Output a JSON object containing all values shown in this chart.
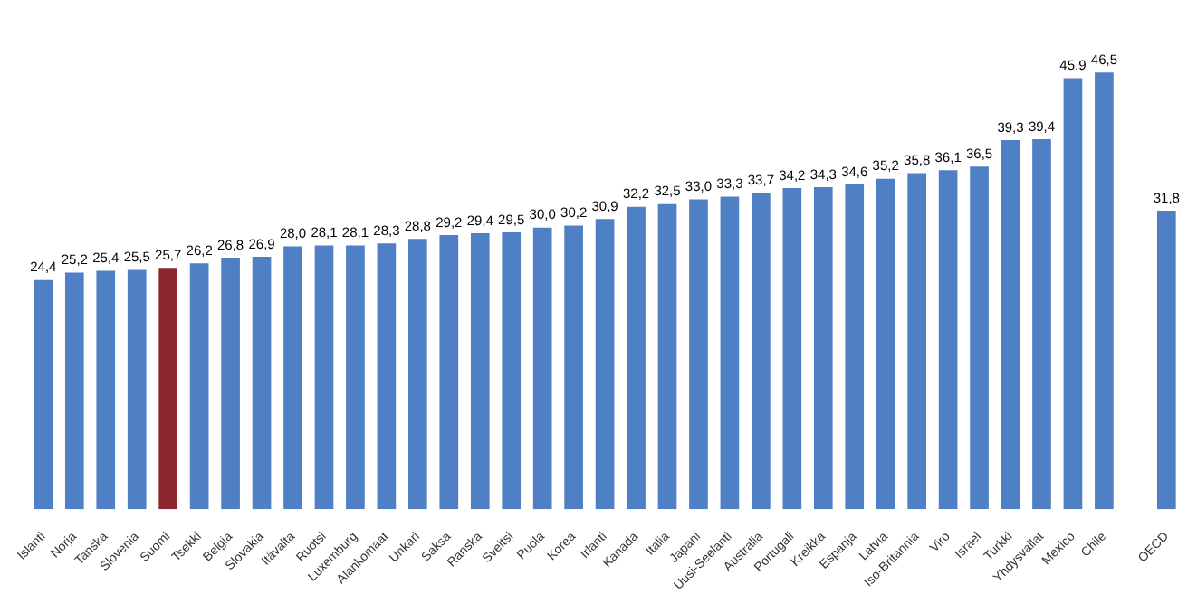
{
  "chart_data": {
    "type": "bar",
    "categories": [
      "Islanti",
      "Norja",
      "Tanska",
      "Slovenia",
      "Suomi",
      "Tsekki",
      "Belgia",
      "Slovakia",
      "Itävalta",
      "Ruotsi",
      "Luxemburg",
      "Alankomaat",
      "Unkari",
      "Saksa",
      "Ranska",
      "Sveitsi",
      "Puola",
      "Korea",
      "Irlanti",
      "Kanada",
      "Italia",
      "Japani",
      "Uusi-Seelanti",
      "Australia",
      "Portugali",
      "Kreikka",
      "Espanja",
      "Latvia",
      "Iso-Britannia",
      "Viro",
      "Israel",
      "Turkki",
      "Yhdysvallat",
      "Mexico",
      "Chile",
      null,
      "OECD"
    ],
    "values": [
      24.4,
      25.2,
      25.4,
      25.5,
      25.7,
      26.2,
      26.8,
      26.9,
      28.0,
      28.1,
      28.1,
      28.3,
      28.8,
      29.2,
      29.4,
      29.5,
      30.0,
      30.2,
      30.9,
      32.2,
      32.5,
      33.0,
      33.3,
      33.7,
      34.2,
      34.3,
      34.6,
      35.2,
      35.8,
      36.1,
      36.5,
      39.3,
      39.4,
      45.9,
      46.5,
      null,
      31.8
    ],
    "value_labels": [
      "24,4",
      "25,2",
      "25,4",
      "25,5",
      "25,7",
      "26,2",
      "26,8",
      "26,9",
      "28,0",
      "28,1",
      "28,1",
      "28,3",
      "28,8",
      "29,2",
      "29,4",
      "29,5",
      "30,0",
      "30,2",
      "30,9",
      "32,2",
      "32,5",
      "33,0",
      "33,3",
      "33,7",
      "34,2",
      "34,3",
      "34,6",
      "35,2",
      "35,8",
      "36,1",
      "36,5",
      "39,3",
      "39,4",
      "45,9",
      "46,5",
      null,
      "31,8"
    ],
    "colors": [
      "#4f7fc4",
      "#4f7fc4",
      "#4f7fc4",
      "#4f7fc4",
      "#8c2530",
      "#4f7fc4",
      "#4f7fc4",
      "#4f7fc4",
      "#4f7fc4",
      "#4f7fc4",
      "#4f7fc4",
      "#4f7fc4",
      "#4f7fc4",
      "#4f7fc4",
      "#4f7fc4",
      "#4f7fc4",
      "#4f7fc4",
      "#4f7fc4",
      "#4f7fc4",
      "#4f7fc4",
      "#4f7fc4",
      "#4f7fc4",
      "#4f7fc4",
      "#4f7fc4",
      "#4f7fc4",
      "#4f7fc4",
      "#4f7fc4",
      "#4f7fc4",
      "#4f7fc4",
      "#4f7fc4",
      "#4f7fc4",
      "#4f7fc4",
      "#4f7fc4",
      "#4f7fc4",
      "#4f7fc4",
      "#4f7fc4",
      "#4f7fc4"
    ]
  }
}
